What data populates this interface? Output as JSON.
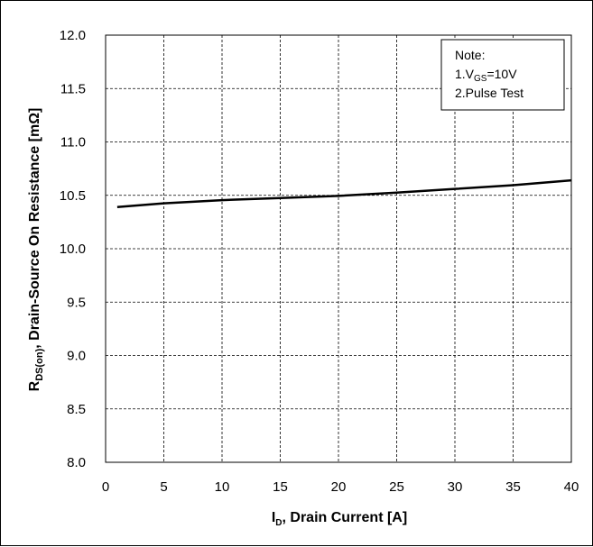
{
  "chart_data": {
    "type": "line",
    "xlabel": {
      "main": "I",
      "sub": "D",
      "rest": ", Drain Current [A]"
    },
    "ylabel": {
      "main": "R",
      "sub": "DS(on)",
      "rest": ", Drain-Source On Resistance [mΩ]"
    },
    "xlim": [
      0,
      40
    ],
    "ylim": [
      8.0,
      12.0
    ],
    "x_ticks": [
      "0",
      "5",
      "10",
      "15",
      "20",
      "25",
      "30",
      "35",
      "40"
    ],
    "y_ticks": [
      "8.0",
      "8.5",
      "9.0",
      "9.5",
      "10.0",
      "10.5",
      "11.0",
      "11.5",
      "12.0"
    ],
    "grid": true,
    "note": {
      "title": "Note:",
      "line1": {
        "prefix": "1.V",
        "sub": "GS",
        "suffix": "=10V"
      },
      "line2": "2.Pulse Test",
      "placement": "top-right"
    },
    "series": [
      {
        "x": [
          1,
          5,
          10,
          15,
          20,
          25,
          30,
          35,
          40
        ],
        "y": [
          10.39,
          10.425,
          10.455,
          10.475,
          10.495,
          10.525,
          10.56,
          10.595,
          10.64
        ]
      }
    ]
  }
}
